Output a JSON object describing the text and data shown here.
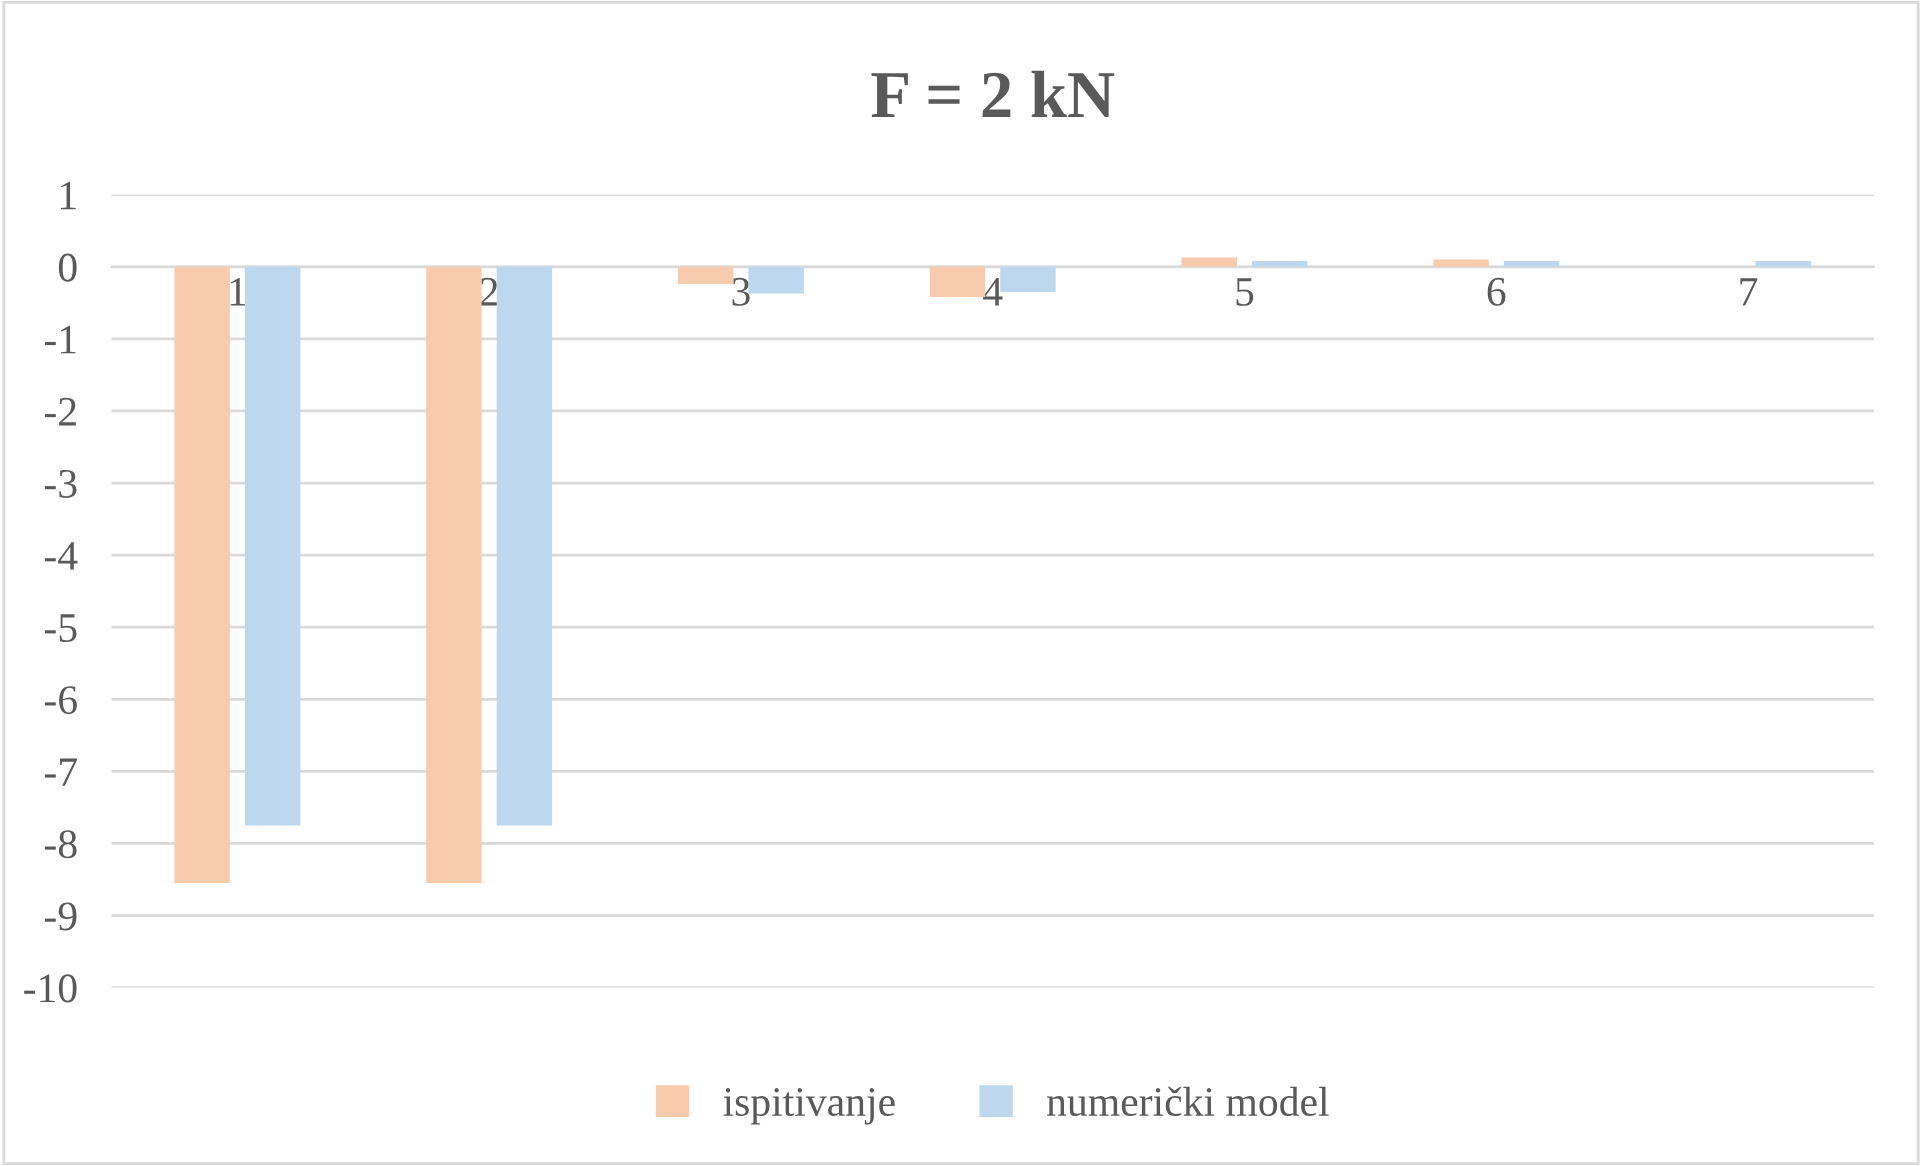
{
  "chart_data": {
    "type": "bar",
    "title": "F = 2 kN",
    "categories": [
      "1",
      "2",
      "3",
      "4",
      "5",
      "6",
      "7"
    ],
    "series": [
      {
        "name": "ispitivanje",
        "color": "#f8cbad",
        "values": [
          -8.55,
          -8.55,
          -0.24,
          -0.42,
          0.13,
          0.1,
          null
        ]
      },
      {
        "name": "numerički model",
        "color": "#bdd7ee",
        "values": [
          -7.75,
          -7.75,
          -0.37,
          -0.35,
          0.08,
          0.08,
          0.08
        ]
      }
    ],
    "ylim": [
      -10,
      1
    ],
    "yticks": [
      {
        "value": 1,
        "label": "1"
      },
      {
        "value": 0,
        "label": "0"
      },
      {
        "value": -1,
        "label": "-1"
      },
      {
        "value": -2,
        "label": "-2"
      },
      {
        "value": -3,
        "label": "-3"
      },
      {
        "value": -4,
        "label": "-4"
      },
      {
        "value": -5,
        "label": "-5"
      },
      {
        "value": -6,
        "label": "-6"
      },
      {
        "value": -7,
        "label": "-7"
      },
      {
        "value": -8,
        "label": "-8"
      },
      {
        "value": -9,
        "label": "-9"
      },
      {
        "value": -10,
        "label": "-10"
      }
    ],
    "grid": "y",
    "legend": "bottom"
  }
}
